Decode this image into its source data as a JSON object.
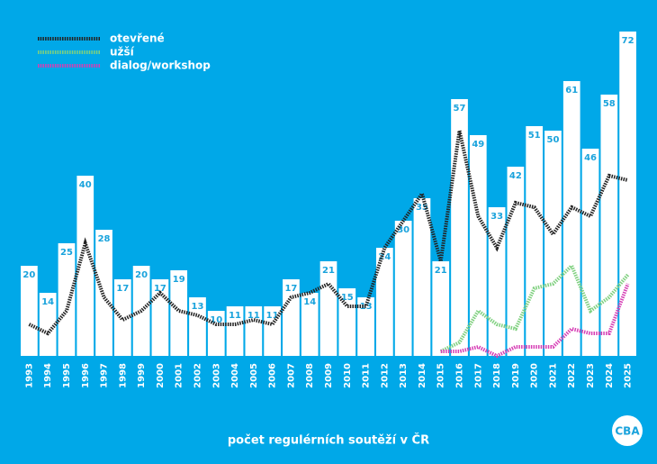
{
  "chart_data": {
    "type": "bar",
    "title": "počet regulérních soutěží v ČR",
    "logo": "CBA",
    "categories": [
      "1993",
      "1994",
      "1995",
      "1996",
      "1997",
      "1998",
      "1999",
      "2000",
      "2001",
      "2002",
      "2003",
      "2004",
      "2005",
      "2006",
      "2007",
      "2008",
      "2009",
      "2010",
      "2011",
      "2012",
      "2013",
      "2014",
      "2015",
      "2016",
      "2017",
      "2018",
      "2019",
      "2020",
      "2021",
      "2022",
      "2023",
      "2024",
      "2025"
    ],
    "ylim": [
      0,
      72
    ],
    "series": [
      {
        "type": "bar",
        "color": "#ffffff",
        "values": [
          20,
          14,
          25,
          40,
          28,
          17,
          20,
          17,
          19,
          13,
          10,
          11,
          11,
          11,
          17,
          14,
          21,
          15,
          13,
          24,
          30,
          35,
          21,
          57,
          49,
          33,
          42,
          51,
          50,
          61,
          46,
          58,
          72
        ]
      },
      {
        "type": "line",
        "name": "otevřené",
        "color": "#222222",
        "values": [
          7,
          5,
          10,
          25,
          13,
          8,
          10,
          14,
          10,
          9,
          7,
          7,
          8,
          7,
          13,
          14,
          16,
          11,
          11,
          24,
          30,
          36,
          21,
          50,
          31,
          24,
          34,
          33,
          27,
          33,
          31,
          40,
          39
        ]
      },
      {
        "type": "line",
        "name": "užší",
        "color": "#7fd07f",
        "values": [
          null,
          null,
          null,
          null,
          null,
          null,
          null,
          null,
          null,
          null,
          null,
          null,
          null,
          null,
          null,
          null,
          null,
          null,
          null,
          null,
          null,
          null,
          1,
          3,
          10,
          7,
          6,
          15,
          16,
          20,
          10,
          13,
          18
        ]
      },
      {
        "type": "line",
        "name": "dialog/workshop",
        "color": "#d63fb5",
        "values": [
          null,
          null,
          null,
          null,
          null,
          null,
          null,
          null,
          null,
          null,
          null,
          null,
          null,
          null,
          null,
          null,
          null,
          null,
          null,
          null,
          null,
          null,
          1,
          1,
          2,
          0,
          2,
          2,
          2,
          6,
          5,
          5,
          16
        ]
      }
    ]
  }
}
